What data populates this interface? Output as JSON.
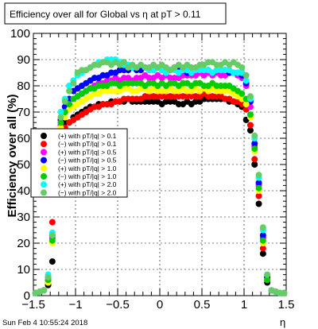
{
  "chart_data": {
    "type": "scatter",
    "title": "Efficiency over all for Global vs   η at pT > 0.11",
    "xlabel": "η",
    "ylabel": "Efficiency over all (%)",
    "xlim": [
      -1.5,
      1.5
    ],
    "ylim": [
      0,
      100
    ],
    "xticks": [
      "−1.5",
      "−1",
      "−0.5",
      "0",
      "0.5",
      "1",
      "1.5"
    ],
    "yticks": [
      "0",
      "10",
      "20",
      "30",
      "40",
      "50",
      "60",
      "70",
      "80",
      "90",
      "100"
    ],
    "grid": true,
    "legend_position": "left-middle",
    "x": [
      -1.475,
      -1.425,
      -1.375,
      -1.325,
      -1.275,
      -1.225,
      -1.175,
      -1.125,
      -1.075,
      -1.025,
      -0.975,
      -0.925,
      -0.875,
      -0.825,
      -0.775,
      -0.725,
      -0.675,
      -0.625,
      -0.575,
      -0.525,
      -0.475,
      -0.425,
      -0.375,
      -0.325,
      -0.275,
      -0.225,
      -0.175,
      -0.125,
      -0.075,
      -0.025,
      0.025,
      0.075,
      0.125,
      0.175,
      0.225,
      0.275,
      0.325,
      0.375,
      0.425,
      0.475,
      0.525,
      0.575,
      0.625,
      0.675,
      0.725,
      0.775,
      0.825,
      0.875,
      0.925,
      0.975,
      1.025,
      1.075,
      1.125,
      1.175,
      1.225,
      1.275,
      1.325,
      1.375,
      1.425,
      1.475
    ],
    "series": [
      {
        "name": "(+) with pT/|q| > 0.1",
        "color": "#000000",
        "values": [
          1,
          1.5,
          2,
          4,
          13,
          40,
          60,
          66,
          66,
          68,
          69,
          70,
          71,
          72,
          72,
          73,
          73,
          73,
          74,
          74,
          74,
          74,
          75,
          74,
          74,
          74,
          74,
          74,
          74,
          74,
          73,
          74,
          74,
          74,
          73,
          73,
          74,
          73,
          74,
          74,
          75,
          75,
          75,
          75,
          75,
          75,
          74,
          74,
          73,
          72,
          67,
          63,
          50,
          35,
          16,
          5,
          2,
          1.5,
          1,
          1
        ]
      },
      {
        "name": "(−) with pT/|q| > 0.1",
        "color": "#ff0000",
        "values": [
          1,
          1.5,
          2,
          5,
          28,
          55,
          62,
          64,
          66,
          67,
          68,
          69,
          70,
          71,
          72,
          72,
          73,
          73,
          73,
          74,
          74,
          75,
          75,
          75,
          75,
          75,
          76,
          76,
          76,
          76,
          76,
          76,
          76,
          76,
          76,
          76,
          76,
          76,
          76,
          76,
          77,
          76,
          76,
          76,
          76,
          75,
          75,
          74,
          74,
          73,
          71,
          65,
          52,
          38,
          18,
          6,
          2,
          1.5,
          1,
          1
        ]
      },
      {
        "name": "(+) with pT/|q| > 0.5",
        "color": "#ff00ff",
        "values": [
          1,
          1.5,
          2,
          6,
          22,
          48,
          65,
          70,
          73,
          75,
          76,
          77,
          78,
          79,
          80,
          81,
          81,
          82,
          82,
          83,
          82,
          83,
          83,
          82,
          83,
          83,
          84,
          83,
          83,
          84,
          83,
          84,
          83,
          83,
          83,
          84,
          84,
          84,
          84,
          85,
          84,
          85,
          84,
          85,
          84,
          84,
          85,
          85,
          84,
          83,
          80,
          72,
          57,
          42,
          22,
          7,
          2,
          1.5,
          1,
          1
        ]
      },
      {
        "name": "(−) with pT/|q| > 0.5",
        "color": "#0000ff",
        "values": [
          1,
          1.5,
          2,
          7,
          23,
          50,
          67,
          72,
          75,
          78,
          79,
          80,
          81,
          82,
          83,
          83,
          84,
          84,
          85,
          85,
          86,
          86,
          86,
          87,
          86,
          86,
          87,
          86,
          86,
          87,
          86,
          86,
          86,
          87,
          86,
          86,
          85,
          86,
          86,
          86,
          86,
          86,
          85,
          86,
          86,
          86,
          85,
          85,
          85,
          84,
          81,
          74,
          58,
          43,
          23,
          7,
          2,
          1.5,
          1,
          1
        ]
      },
      {
        "name": "(+) with pT/|q| > 1.0",
        "color": "#ffff00",
        "values": [
          1,
          1.5,
          2,
          5,
          20,
          46,
          64,
          68,
          71,
          72,
          73,
          74,
          75,
          76,
          77,
          77,
          78,
          78,
          78,
          78,
          78,
          79,
          79,
          78,
          78,
          79,
          79,
          78,
          79,
          78,
          78,
          78,
          79,
          78,
          78,
          79,
          78,
          78,
          79,
          78,
          79,
          78,
          79,
          78,
          78,
          78,
          78,
          77,
          76,
          75,
          73,
          68,
          55,
          40,
          20,
          6,
          2,
          1.5,
          1,
          1
        ]
      },
      {
        "name": "(−) with pT/|q| > 1.0",
        "color": "#00cc00",
        "values": [
          1,
          1.5,
          2,
          6,
          21,
          47,
          66,
          70,
          73,
          75,
          76,
          77,
          78,
          79,
          79,
          80,
          80,
          80,
          81,
          81,
          80,
          81,
          81,
          81,
          81,
          81,
          80,
          81,
          81,
          80,
          81,
          80,
          81,
          81,
          80,
          81,
          81,
          80,
          81,
          81,
          80,
          80,
          81,
          80,
          80,
          80,
          80,
          79,
          78,
          77,
          75,
          69,
          56,
          41,
          21,
          6,
          2,
          1.5,
          1,
          1
        ]
      },
      {
        "name": "(+) with pT/|q| > 2.0",
        "color": "#00ffff",
        "values": [
          1,
          1.5,
          2,
          8,
          24,
          52,
          70,
          75,
          80,
          82,
          84,
          85,
          86,
          87,
          88,
          89,
          89,
          90,
          90,
          90,
          89,
          88,
          88,
          87,
          87,
          88,
          87,
          86,
          86,
          87,
          86,
          85,
          86,
          86,
          85,
          86,
          86,
          85,
          86,
          86,
          86,
          86,
          85,
          86,
          86,
          86,
          86,
          85,
          85,
          85,
          82,
          75,
          60,
          45,
          25,
          8,
          2,
          1.5,
          1,
          1
        ]
      },
      {
        "name": "(−) with pT/|q| > 2.0",
        "color": "#66cc66",
        "values": [
          1,
          1.5,
          2,
          7,
          23,
          50,
          68,
          74,
          78,
          81,
          85,
          86,
          86,
          87,
          88,
          88,
          89,
          89,
          88,
          89,
          88,
          89,
          87,
          88,
          87,
          88,
          87,
          87,
          88,
          87,
          88,
          87,
          86,
          87,
          88,
          87,
          88,
          87,
          87,
          88,
          88,
          89,
          89,
          88,
          88,
          89,
          88,
          89,
          88,
          87,
          84,
          76,
          61,
          46,
          26,
          8,
          2,
          1.5,
          1,
          1
        ]
      }
    ]
  },
  "footer": {
    "timestamp": "Sun Feb  4 10:55:24 2018"
  }
}
